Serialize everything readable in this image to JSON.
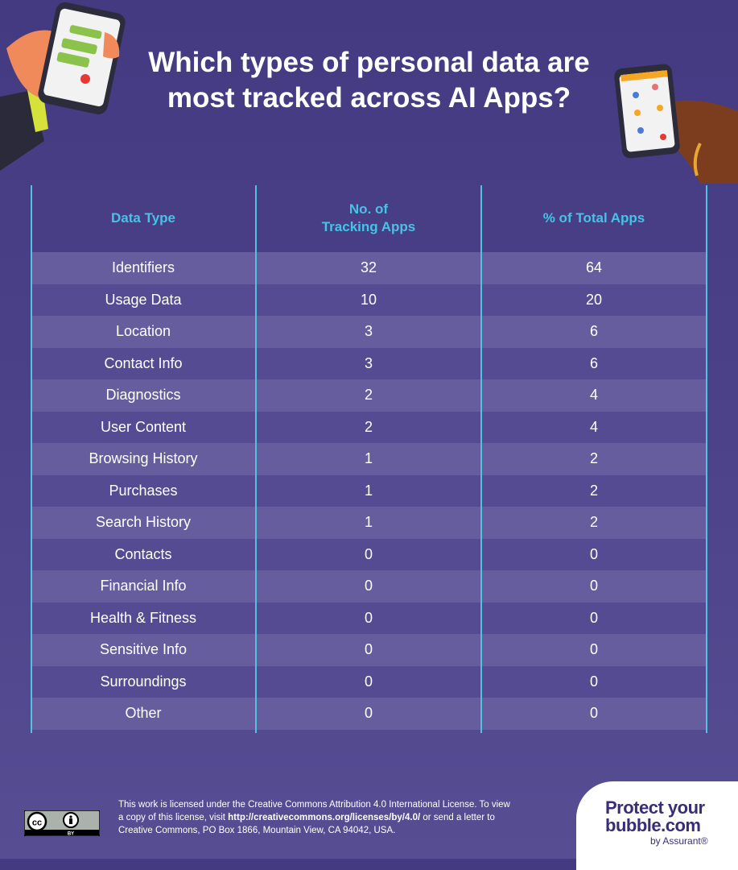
{
  "title": {
    "line1": "Which types of personal data are",
    "line2": "most tracked across AI Apps?"
  },
  "table": {
    "headers": {
      "col1": "Data Type",
      "col2_line1": "No. of",
      "col2_line2": "Tracking Apps",
      "col3": "% of Total Apps"
    },
    "rows": [
      {
        "type": "Identifiers",
        "apps": "32",
        "pct": "64"
      },
      {
        "type": "Usage Data",
        "apps": "10",
        "pct": "20"
      },
      {
        "type": "Location",
        "apps": "3",
        "pct": "6"
      },
      {
        "type": "Contact Info",
        "apps": "3",
        "pct": "6"
      },
      {
        "type": "Diagnostics",
        "apps": "2",
        "pct": "4"
      },
      {
        "type": "User Content",
        "apps": "2",
        "pct": "4"
      },
      {
        "type": "Browsing History",
        "apps": "1",
        "pct": "2"
      },
      {
        "type": "Purchases",
        "apps": "1",
        "pct": "2"
      },
      {
        "type": "Search History",
        "apps": "1",
        "pct": "2"
      },
      {
        "type": "Contacts",
        "apps": "0",
        "pct": "0"
      },
      {
        "type": "Financial Info",
        "apps": "0",
        "pct": "0"
      },
      {
        "type": "Health & Fitness",
        "apps": "0",
        "pct": "0"
      },
      {
        "type": "Sensitive Info",
        "apps": "0",
        "pct": "0"
      },
      {
        "type": "Surroundings",
        "apps": "0",
        "pct": "0"
      },
      {
        "type": "Other",
        "apps": "0",
        "pct": "0"
      }
    ]
  },
  "footer": {
    "cc_badge": "BY",
    "license_part1": "This work is licensed under the Creative Commons Attribution 4.0 International License. To view a copy of this license, visit",
    "license_link": "http://creativecommons.org/licenses/by/4.0/",
    "license_part2": "or send a letter to Creative Commons, PO Box 1866, Mountain View, CA 94042, USA.",
    "logo_line1": "Protect your",
    "logo_line2": "bubble.com",
    "logo_sub": "by Assurant®"
  },
  "colors": {
    "background": "#4b4189",
    "header_text": "#45c3e6",
    "row_light": "#665d9f",
    "row_dark": "#554b92",
    "logo_text": "#3b2d75"
  },
  "icons": [
    "hand-holding-phone-left-illustration",
    "hand-holding-phone-right-illustration",
    "creative-commons-icon",
    "attribution-person-icon"
  ]
}
